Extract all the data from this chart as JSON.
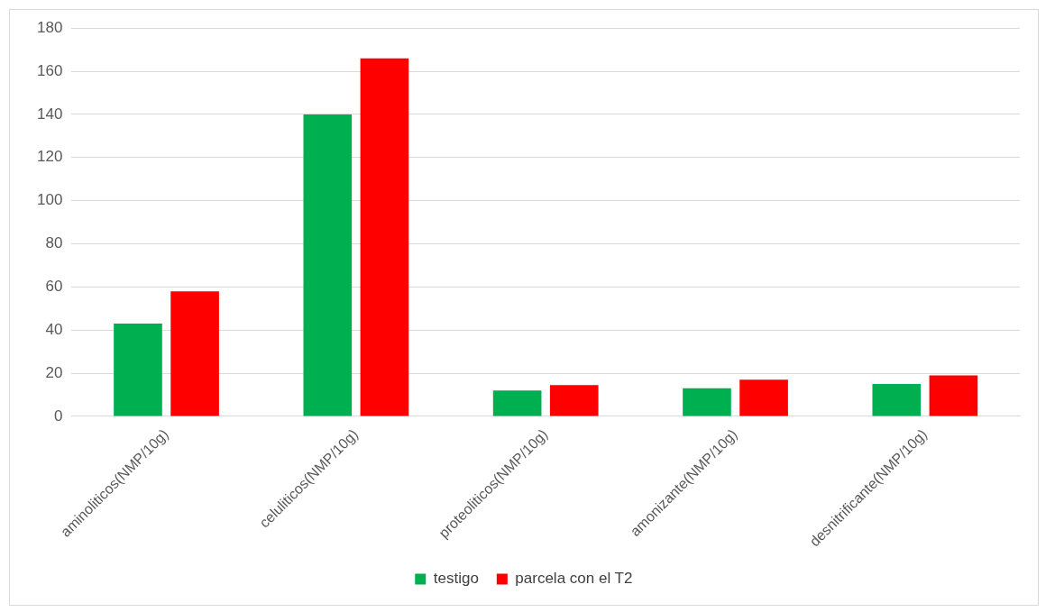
{
  "chart_data": {
    "type": "bar",
    "categories": [
      "aminoliticos(NMP/10g)",
      "celuliticos(NMP/10g)",
      "proteoliticos(NMP/10g)",
      "amonizante(NMP/10g)",
      "desnitrificante(NMP/10g)"
    ],
    "series": [
      {
        "name": "testigo",
        "color": "#00b050",
        "values": [
          43,
          140,
          12,
          13,
          15
        ]
      },
      {
        "name": "parcela con el T2",
        "color": "#ff0000",
        "values": [
          58,
          166,
          14.5,
          17,
          19
        ]
      }
    ],
    "ylim": [
      0,
      180
    ],
    "yticks": [
      0,
      20,
      40,
      60,
      80,
      100,
      120,
      140,
      160,
      180
    ],
    "grid": "y",
    "legend": "bottom"
  }
}
